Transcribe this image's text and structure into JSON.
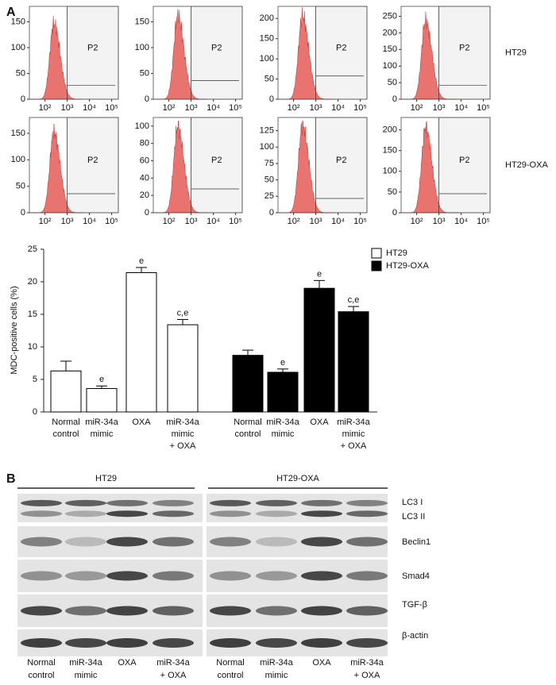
{
  "panel_a": {
    "label": "A",
    "xscale": "log",
    "xlim": [
      20,
      200000
    ],
    "xticks": [
      {
        "value": 100,
        "label": "10²"
      },
      {
        "value": 1000,
        "label": "10³"
      },
      {
        "value": 10000,
        "label": "10⁴"
      },
      {
        "value": 100000,
        "label": "10⁵"
      }
    ],
    "row_labels": [
      "HT29",
      "HT29-OXA"
    ],
    "histograms": [
      [
        {
          "ylim": [
            0,
            180
          ],
          "yticks": [
            0,
            50,
            100,
            150
          ],
          "gate_label": "P2"
        },
        {
          "ylim": [
            0,
            180
          ],
          "yticks": [
            0,
            50,
            100,
            150
          ],
          "gate_label": "P2"
        },
        {
          "ylim": [
            0,
            230
          ],
          "yticks": [
            0,
            50,
            100,
            150,
            200
          ],
          "gate_label": "P2"
        },
        {
          "ylim": [
            0,
            280
          ],
          "yticks": [
            0,
            50,
            100,
            150,
            200,
            250
          ],
          "gate_label": "P2"
        }
      ],
      [
        {
          "ylim": [
            0,
            180
          ],
          "yticks": [
            0,
            50,
            100,
            150
          ],
          "gate_label": "P2"
        },
        {
          "ylim": [
            0,
            110
          ],
          "yticks": [
            0,
            20,
            40,
            60,
            80,
            100
          ],
          "gate_label": "P2"
        },
        {
          "ylim": [
            0,
            145
          ],
          "yticks": [
            0,
            25,
            50,
            75,
            100,
            125
          ],
          "gate_label": "P2"
        },
        {
          "ylim": [
            0,
            230
          ],
          "yticks": [
            0,
            50,
            100,
            150,
            200
          ],
          "gate_label": "P2"
        }
      ]
    ]
  },
  "chart_data": {
    "type": "bar",
    "y_label": "MDC-positive cells (%)",
    "categories": [
      [
        "Normal",
        "control"
      ],
      [
        "miR-34a",
        "mimic"
      ],
      [
        "OXA"
      ],
      [
        "miR-34a",
        "mimic",
        "+ OXA"
      ]
    ],
    "series": [
      {
        "name": "HT29",
        "color": "#ffffff",
        "values": [
          6.3,
          3.6,
          21.4,
          13.4
        ],
        "errors": [
          1.5,
          0.4,
          0.8,
          0.8
        ],
        "significance": [
          null,
          "e",
          "e",
          "c,e"
        ]
      },
      {
        "name": "HT29-OXA",
        "color": "#000000",
        "values": [
          8.7,
          6.1,
          19.0,
          15.4
        ],
        "errors": [
          0.8,
          0.5,
          1.2,
          0.8
        ],
        "significance": [
          null,
          "e",
          "e",
          "c,e"
        ]
      }
    ],
    "ylim": [
      0,
      25
    ],
    "yticks": [
      0,
      5,
      10,
      15,
      20,
      25
    ],
    "legend": "top-right"
  },
  "panel_b": {
    "label": "B",
    "groups": [
      "HT29",
      "HT29-OXA"
    ],
    "proteins": [
      "LC3 I",
      "LC3 II",
      "Beclin1",
      "Smad4",
      "TGF-β",
      "β-actin"
    ],
    "lanes": [
      [
        "Normal",
        "control"
      ],
      [
        "miR-34a",
        "mimic"
      ],
      [
        "OXA"
      ],
      [
        "miR-34a",
        "+ OXA"
      ]
    ]
  }
}
